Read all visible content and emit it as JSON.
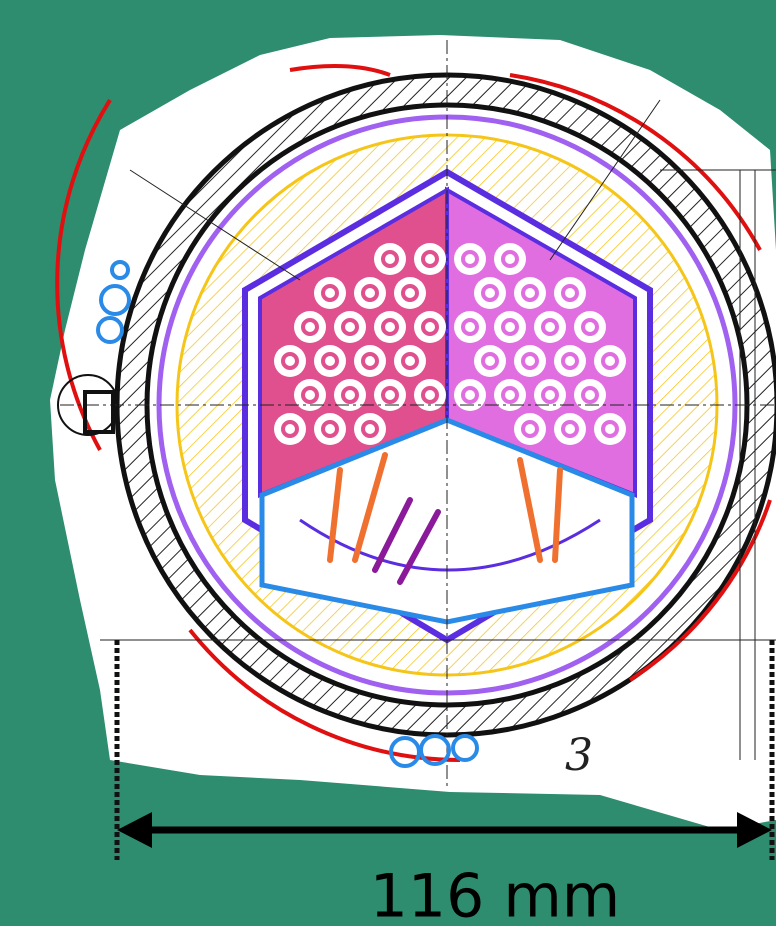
{
  "dimension": {
    "label": "116 mm"
  },
  "annotations": [
    {
      "label": "3"
    }
  ]
}
